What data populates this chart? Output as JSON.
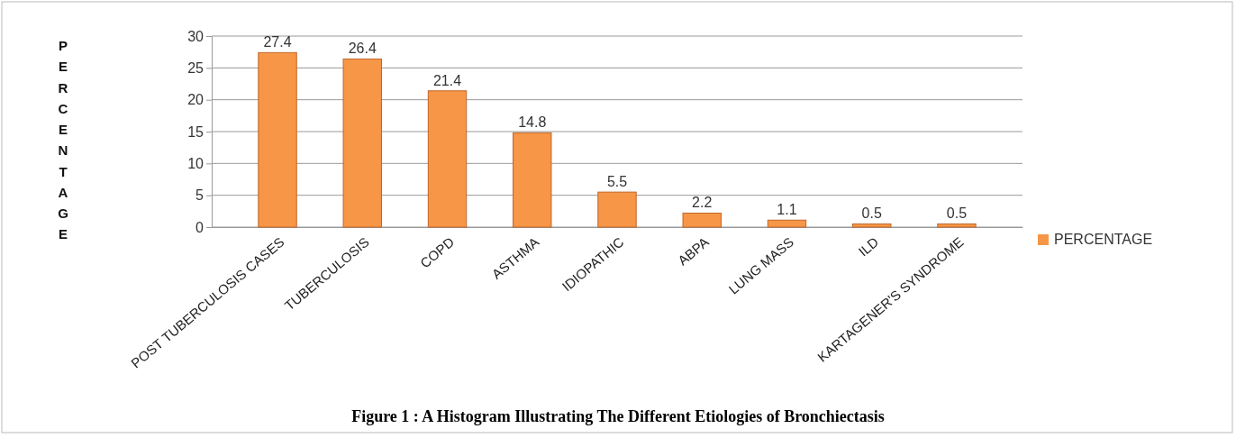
{
  "chart_data": {
    "type": "bar",
    "ylabel": "PERCENTAGE",
    "categories": [
      "POST TUBERCULOSIS CASES",
      "TUBERCULOSIS",
      "COPD",
      "ASTHMA",
      "IDIOPATHIC",
      "ABPA",
      "LUNG MASS",
      "ILD",
      "KARTAGENER'S SYNDROME"
    ],
    "series": [
      {
        "name": "PERCENTAGE",
        "color": "#f79646",
        "values": [
          27.4,
          26.4,
          21.4,
          14.8,
          5.5,
          2.2,
          1.1,
          0.5,
          0.5
        ]
      }
    ],
    "ylim": [
      0,
      30
    ],
    "yticks": [
      0,
      5,
      10,
      15,
      20,
      25,
      30
    ],
    "grid": "y",
    "legend": "right",
    "data_labels": true,
    "annotations": [
      "Figure 1 : A Histogram Illustrating The Different Etiologies of Bronchiectasis"
    ]
  }
}
